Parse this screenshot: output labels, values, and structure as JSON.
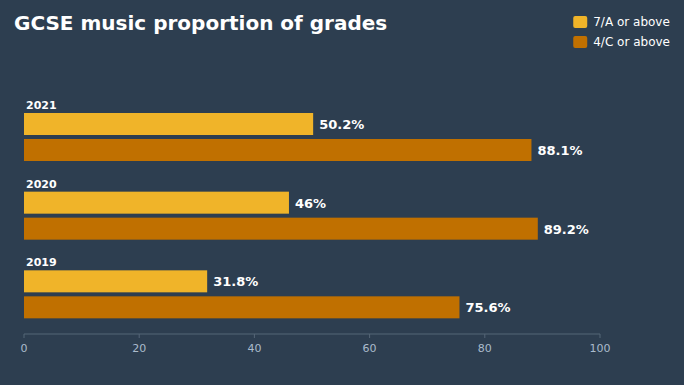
{
  "chart_data": {
    "type": "bar",
    "orientation": "horizontal",
    "title": "GCSE music proportion of grades",
    "categories": [
      "2021",
      "2020",
      "2019"
    ],
    "series": [
      {
        "name": "7/A or above",
        "color": "#f0b429",
        "values": [
          50.2,
          46.0,
          31.8
        ],
        "value_labels": [
          "50.2%",
          "46%",
          "31.8%"
        ]
      },
      {
        "name": "4/C or above",
        "color": "#c07000",
        "values": [
          88.1,
          89.2,
          75.6
        ],
        "value_labels": [
          "88.1%",
          "89.2%",
          "75.6%"
        ]
      }
    ],
    "xlim": [
      0,
      100
    ],
    "xticks": [
      0,
      20,
      40,
      60,
      80,
      100
    ],
    "data_labels": true,
    "grid": false,
    "legend": "upper right"
  }
}
